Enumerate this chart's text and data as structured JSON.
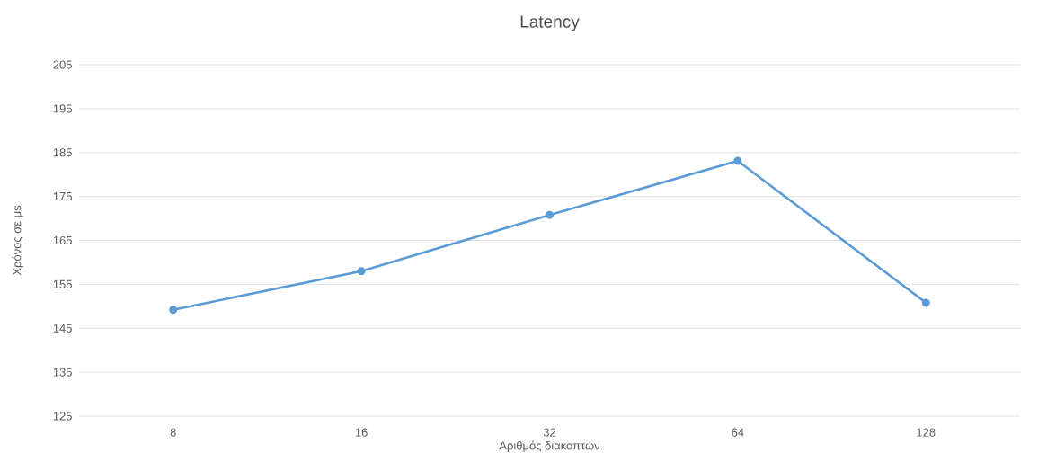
{
  "chart_data": {
    "type": "line",
    "title": "Latency",
    "xlabel": "Αριθμός διακοπτών",
    "ylabel": "Χρόνος σε μs",
    "categories": [
      "8",
      "16",
      "32",
      "64",
      "128"
    ],
    "series": [
      {
        "color": "#5b9bd5",
        "values": [
          149.2,
          158.0,
          170.8,
          183.1,
          150.8
        ]
      }
    ],
    "ylim": [
      125,
      205
    ],
    "yticks": [
      125,
      135,
      145,
      155,
      165,
      175,
      185,
      195,
      205
    ],
    "grid": "y",
    "marker": "circle",
    "line_style": "solid"
  }
}
